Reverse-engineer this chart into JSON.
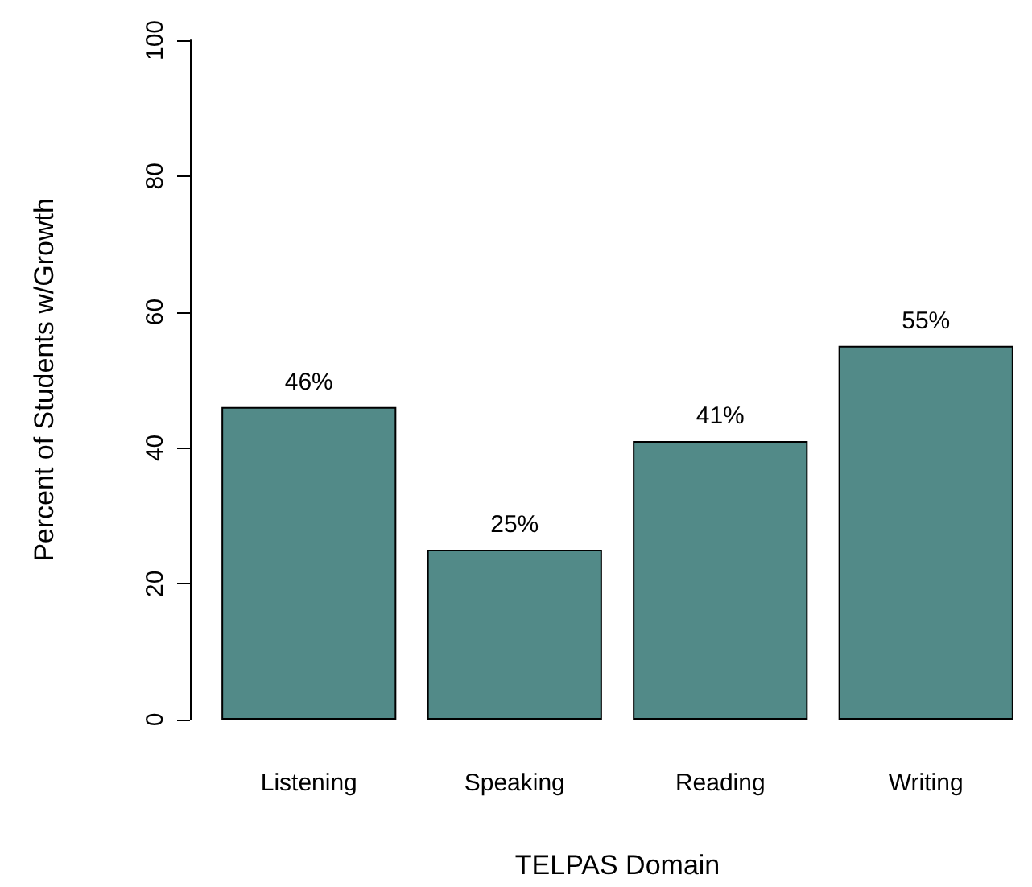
{
  "chart_data": {
    "type": "bar",
    "xlabel": "TELPAS Domain",
    "ylabel": "Percent of Students w/Growth",
    "categories": [
      "Listening",
      "Speaking",
      "Reading",
      "Writing"
    ],
    "values": [
      46,
      25,
      41,
      55
    ],
    "value_labels": [
      "46%",
      "25%",
      "41%",
      "55%"
    ],
    "color": "#528a88",
    "ylim": [
      0,
      100
    ],
    "yticks": [
      0,
      20,
      40,
      60,
      80,
      100
    ]
  }
}
